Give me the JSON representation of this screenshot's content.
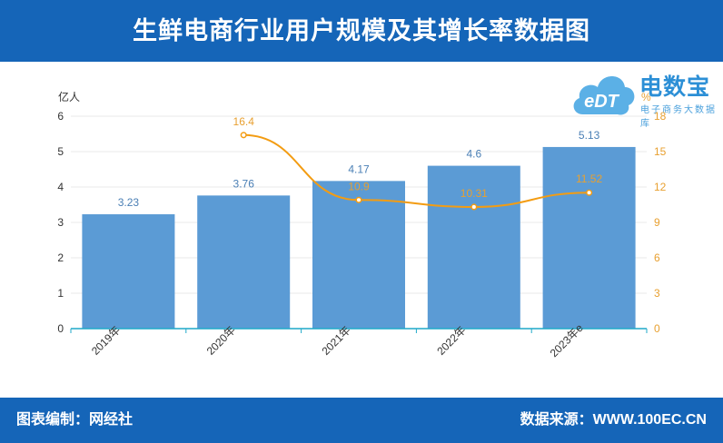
{
  "header": {
    "title": "生鲜电商行业用户规模及其增长率数据图"
  },
  "footer": {
    "left": "图表编制：网经社",
    "right": "数据来源：WWW.100EC.CN"
  },
  "logo": {
    "main": "电数宝",
    "sub": "电子商务大数据库",
    "badge": "eDT"
  },
  "colors": {
    "brand": "#1565b8",
    "bar": "#5b9bd5",
    "line": "#f39c12",
    "bar_label": "#4a7fb5",
    "line_label": "#e8a030"
  },
  "chart_data": {
    "type": "bar",
    "categories": [
      "2019年",
      "2020年",
      "2021年",
      "2022年",
      "2023年e"
    ],
    "series": [
      {
        "type": "bar",
        "values": [
          3.23,
          3.76,
          4.17,
          4.6,
          5.13
        ],
        "axis": "left"
      },
      {
        "type": "line",
        "values": [
          null,
          16.4,
          10.9,
          10.31,
          11.52
        ],
        "axis": "right"
      }
    ],
    "y_left": {
      "label": "亿人",
      "range": [
        0,
        6
      ],
      "ticks": [
        0,
        1,
        2,
        3,
        4,
        5,
        6
      ]
    },
    "y_right": {
      "label": "%",
      "range": [
        0,
        18
      ],
      "ticks": [
        0,
        3,
        6,
        9,
        12,
        15,
        18
      ]
    },
    "grid": true,
    "legend": "none"
  }
}
